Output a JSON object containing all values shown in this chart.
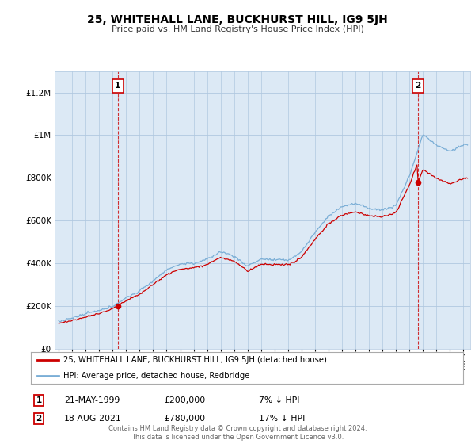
{
  "title": "25, WHITEHALL LANE, BUCKHURST HILL, IG9 5JH",
  "subtitle": "Price paid vs. HM Land Registry's House Price Index (HPI)",
  "legend_line1": "25, WHITEHALL LANE, BUCKHURST HILL, IG9 5JH (detached house)",
  "legend_line2": "HPI: Average price, detached house, Redbridge",
  "annotation1_date": "21-MAY-1999",
  "annotation1_price": "£200,000",
  "annotation1_hpi": "7% ↓ HPI",
  "annotation1_year": 1999.38,
  "annotation1_value": 200000,
  "annotation2_date": "18-AUG-2021",
  "annotation2_price": "£780,000",
  "annotation2_hpi": "17% ↓ HPI",
  "annotation2_year": 2021.62,
  "annotation2_value": 780000,
  "sale_color": "#cc0000",
  "hpi_color": "#7aaed6",
  "vline_color": "#cc0000",
  "plot_bg_color": "#dce9f5",
  "footer_text": "Contains HM Land Registry data © Crown copyright and database right 2024.\nThis data is licensed under the Open Government Licence v3.0.",
  "ylim": [
    0,
    1300000
  ],
  "xlim_start": 1994.7,
  "xlim_end": 2025.5,
  "hpi_breakpoints_years": [
    1995,
    1996,
    1997,
    1998,
    1999,
    2000,
    2001,
    2002,
    2003,
    2004,
    2005,
    2006,
    2007,
    2008,
    2009,
    2010,
    2011,
    2012,
    2013,
    2014,
    2015,
    2016,
    2017,
    2018,
    2019,
    2020,
    2021,
    2022,
    2023,
    2024,
    2025
  ],
  "hpi_breakpoints_vals": [
    128000,
    140000,
    158000,
    175000,
    200000,
    238000,
    272000,
    320000,
    368000,
    395000,
    400000,
    420000,
    455000,
    435000,
    385000,
    420000,
    415000,
    415000,
    455000,
    545000,
    625000,
    670000,
    685000,
    665000,
    660000,
    680000,
    820000,
    1010000,
    960000,
    930000,
    960000
  ]
}
